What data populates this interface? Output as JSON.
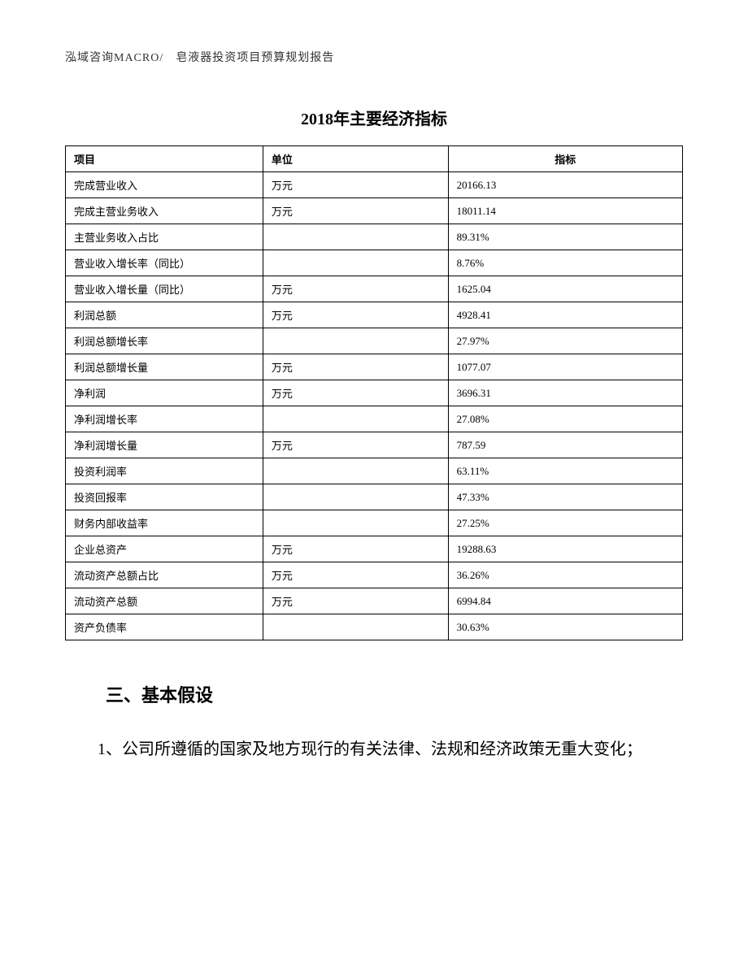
{
  "header": "泓域咨询MACRO/　皂液器投资项目预算规划报告",
  "table": {
    "title": "2018年主要经济指标",
    "columns": [
      "项目",
      "单位",
      "指标"
    ],
    "rows": [
      {
        "item": "完成营业收入",
        "unit": "万元",
        "value": "20166.13"
      },
      {
        "item": "完成主营业务收入",
        "unit": "万元",
        "value": "18011.14"
      },
      {
        "item": "主营业务收入占比",
        "unit": "",
        "value": "89.31%"
      },
      {
        "item": "营业收入增长率（同比）",
        "unit": "",
        "value": "8.76%"
      },
      {
        "item": "营业收入增长量（同比）",
        "unit": "万元",
        "value": "1625.04"
      },
      {
        "item": "利润总额",
        "unit": "万元",
        "value": "4928.41"
      },
      {
        "item": "利润总额增长率",
        "unit": "",
        "value": "27.97%"
      },
      {
        "item": "利润总额增长量",
        "unit": "万元",
        "value": "1077.07"
      },
      {
        "item": "净利润",
        "unit": "万元",
        "value": "3696.31"
      },
      {
        "item": "净利润增长率",
        "unit": "",
        "value": "27.08%"
      },
      {
        "item": "净利润增长量",
        "unit": "万元",
        "value": "787.59"
      },
      {
        "item": "投资利润率",
        "unit": "",
        "value": "63.11%"
      },
      {
        "item": "投资回报率",
        "unit": "",
        "value": "47.33%"
      },
      {
        "item": "财务内部收益率",
        "unit": "",
        "value": "27.25%"
      },
      {
        "item": "企业总资产",
        "unit": "万元",
        "value": "19288.63"
      },
      {
        "item": "流动资产总额占比",
        "unit": "万元",
        "value": "36.26%"
      },
      {
        "item": "流动资产总额",
        "unit": "万元",
        "value": "6994.84"
      },
      {
        "item": "资产负债率",
        "unit": "",
        "value": "30.63%"
      }
    ]
  },
  "section": {
    "heading": "三、基本假设",
    "paragraph": "1、公司所遵循的国家及地方现行的有关法律、法规和经济政策无重大变化；"
  }
}
